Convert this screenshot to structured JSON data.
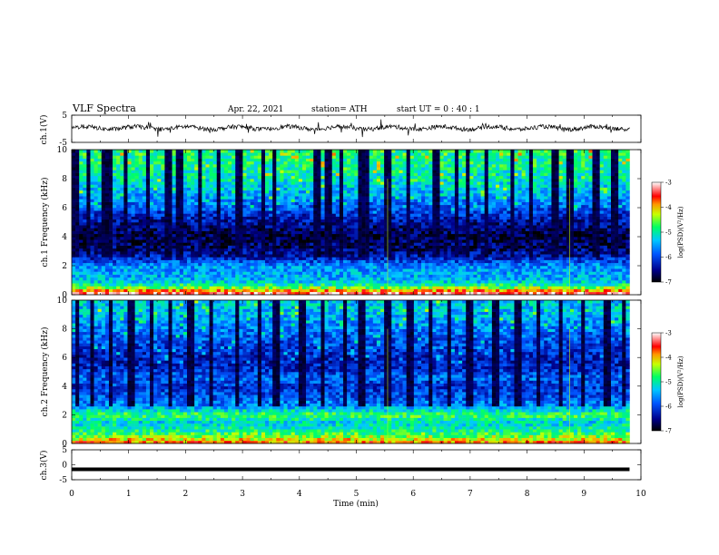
{
  "header": {
    "title": "VLF  Spectra",
    "date": "Apr. 22, 2021",
    "station": "station= ATH",
    "start": "start  UT  =   0  : 40 : 1"
  },
  "chart_data": [
    {
      "type": "line",
      "name": "ch1-waveform",
      "ylabel": "ch.1(V)",
      "ylim": [
        -5,
        5
      ],
      "yticks": [
        "5",
        "-5"
      ],
      "xlim": [
        0,
        10
      ],
      "baseline": 0.3,
      "trace_end_min": 9.8
    },
    {
      "type": "heatmap",
      "name": "ch1-spectrogram",
      "ylabel": "ch.1 Frequency  (kHz)",
      "ylim": [
        0,
        10
      ],
      "yticks": [
        "0",
        "2",
        "4",
        "6",
        "8",
        "10"
      ],
      "xlim": [
        0,
        10
      ],
      "data_end_min": 9.8,
      "colorbar": {
        "label": "log(PSD)(V²/Hz)",
        "ticks": [
          "-3",
          "-4",
          "-5",
          "-6",
          "-7"
        ],
        "range": [
          -7,
          -3
        ]
      },
      "band_levels": [
        {
          "f": 0.2,
          "v": -3.6
        },
        {
          "f": 0.6,
          "v": -4.8
        },
        {
          "f": 1.0,
          "v": -5.4
        },
        {
          "f": 1.5,
          "v": -5.5
        },
        {
          "f": 2.0,
          "v": -5.6
        },
        {
          "f": 2.6,
          "v": -6.3
        },
        {
          "f": 3.2,
          "v": -6.6
        },
        {
          "f": 4.0,
          "v": -6.8
        },
        {
          "f": 4.6,
          "v": -6.6
        },
        {
          "f": 5.2,
          "v": -6.3
        },
        {
          "f": 6.0,
          "v": -5.9
        },
        {
          "f": 7.0,
          "v": -5.4
        },
        {
          "f": 8.0,
          "v": -5.1
        },
        {
          "f": 9.0,
          "v": -4.9
        },
        {
          "f": 10.0,
          "v": -4.8
        }
      ],
      "spike_times_min": [
        0.05,
        0.1,
        0.3,
        0.55,
        0.65,
        0.95,
        1.35,
        1.7,
        1.9,
        2.25,
        2.6,
        2.95,
        3.35,
        3.55,
        4.3,
        4.5,
        4.75,
        5.05,
        5.15,
        5.55,
        5.9,
        6.4,
        6.75,
        6.95,
        7.3,
        7.75,
        8.05,
        8.5,
        8.75,
        9.2,
        9.55
      ]
    },
    {
      "type": "heatmap",
      "name": "ch2-spectrogram",
      "ylabel": "ch.2 Frequency  (kHz)",
      "ylim": [
        0,
        10
      ],
      "yticks": [
        "0",
        "2",
        "4",
        "6",
        "8",
        "10"
      ],
      "xlim": [
        0,
        10
      ],
      "data_end_min": 9.8,
      "colorbar": {
        "label": "log(PSD)(V²/Hz)",
        "ticks": [
          "-3",
          "-4",
          "-5",
          "-6",
          "-7"
        ],
        "range": [
          -7,
          -3
        ]
      },
      "band_levels": [
        {
          "f": 0.2,
          "v": -4.0
        },
        {
          "f": 0.6,
          "v": -4.6
        },
        {
          "f": 1.0,
          "v": -5.0
        },
        {
          "f": 1.5,
          "v": -5.2
        },
        {
          "f": 2.0,
          "v": -4.7
        },
        {
          "f": 2.6,
          "v": -5.6
        },
        {
          "f": 3.2,
          "v": -5.9
        },
        {
          "f": 4.0,
          "v": -6.1
        },
        {
          "f": 4.6,
          "v": -5.8
        },
        {
          "f": 5.2,
          "v": -6.2
        },
        {
          "f": 6.0,
          "v": -6.3
        },
        {
          "f": 7.0,
          "v": -6.0
        },
        {
          "f": 8.0,
          "v": -5.7
        },
        {
          "f": 9.0,
          "v": -5.4
        },
        {
          "f": 10.0,
          "v": -5.3
        }
      ],
      "spike_times_min": [
        0.1,
        0.35,
        0.7,
        1.05,
        1.4,
        1.75,
        2.1,
        2.45,
        2.9,
        3.3,
        3.6,
        4.05,
        4.4,
        4.8,
        5.1,
        5.55,
        5.95,
        6.3,
        6.65,
        7.0,
        7.45,
        7.85,
        8.2,
        8.6,
        9.0,
        9.4,
        9.7
      ]
    },
    {
      "type": "line",
      "name": "ch3-waveform",
      "ylabel": "ch.3(V)",
      "ylim": [
        -5,
        5
      ],
      "yticks": [
        "5",
        "0",
        "-5"
      ],
      "xlim": [
        0,
        10
      ],
      "baseline": -1.5,
      "trace_end_min": 9.8
    }
  ],
  "xaxis": {
    "label": "Time  (min)",
    "ticks": [
      "0",
      "1",
      "2",
      "3",
      "4",
      "5",
      "6",
      "7",
      "8",
      "9",
      "10"
    ]
  }
}
